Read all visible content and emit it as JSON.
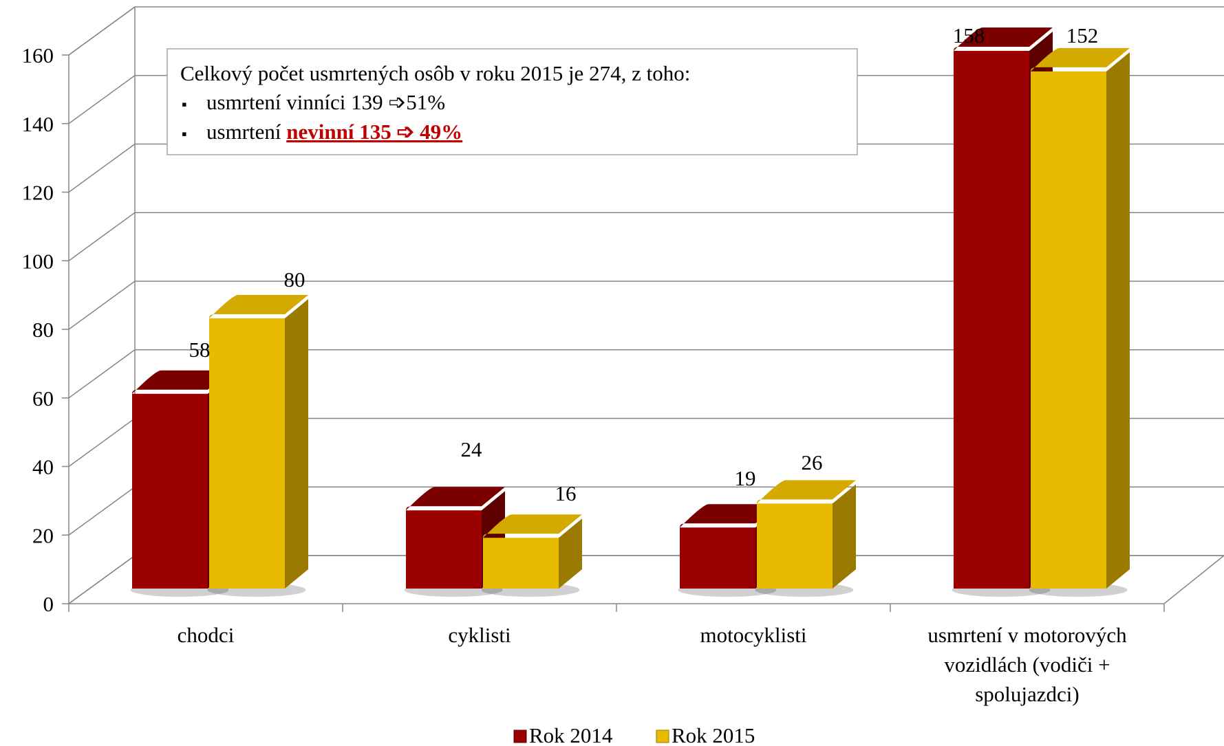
{
  "chart_data": {
    "type": "bar",
    "categories": [
      [
        "chodci"
      ],
      [
        "cyklisti"
      ],
      [
        "motocyklisti"
      ],
      [
        "usmrtení v motorových",
        "vozidlách (vodiči +",
        "spolujazdci)"
      ]
    ],
    "series": [
      {
        "name": "Rok 2014",
        "values": [
          58,
          24,
          19,
          158
        ]
      },
      {
        "name": "Rok 2015",
        "values": [
          80,
          16,
          26,
          152
        ]
      }
    ],
    "yticks": [
      "0",
      "20",
      "40",
      "60",
      "80",
      "100",
      "120",
      "140",
      "160"
    ],
    "ylim": [
      0,
      160
    ],
    "grid": true,
    "legend_position": "bottom",
    "colors": {
      "Rok 2014": {
        "front": "#9b0000",
        "top": "#7a0000",
        "side": "#5e0000"
      },
      "Rok 2015": {
        "front": "#e6bb00",
        "top": "#d4a900",
        "side": "#9a7a00"
      }
    },
    "annotation": {
      "line1": "Celkový počet usmrtených osôb v roku 2015 je 274, z toho:",
      "bullet": "▪",
      "item1": "usmrtení vinníci 139 ➩51%",
      "item2_prefix": "usmrtení ",
      "item2_highlight": "nevinní 135 ➩ 49%"
    }
  }
}
